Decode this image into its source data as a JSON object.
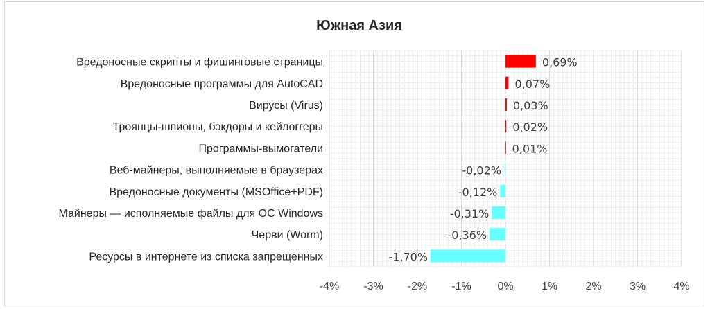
{
  "chart_data": {
    "type": "bar",
    "orientation": "horizontal",
    "title": "Южная Азия",
    "categories": [
      "Вредоносные скрипты и фишинговые страницы",
      "Вредоносные программы для AutoCAD",
      "Вирусы (Virus)",
      "Троянцы-шпионы, бэкдоры и кейлоггеры",
      "Программы-вымогатели",
      "Веб-майнеры, выполняемые в браузерах",
      "Вредоносные документы (MSOffice+PDF)",
      "Майнеры — исполняемые файлы для ОС Windows",
      "Черви (Worm)",
      "Ресурсы в интернете из списка запрещенных"
    ],
    "values": [
      0.69,
      0.07,
      0.03,
      0.02,
      0.01,
      -0.02,
      -0.12,
      -0.31,
      -0.36,
      -1.7
    ],
    "value_labels": [
      "0,69%",
      "0,07%",
      "0,03%",
      "0,02%",
      "0,01%",
      "-0,02%",
      "-0,12%",
      "-0,31%",
      "-0,36%",
      "-1,70%"
    ],
    "xlim": [
      -4,
      4
    ],
    "xticks": [
      -4,
      -3,
      -2,
      -1,
      0,
      1,
      2,
      3,
      4
    ],
    "xtick_labels": [
      "-4%",
      "-3%",
      "-2%",
      "-1%",
      "0%",
      "1%",
      "2%",
      "3%",
      "4%"
    ],
    "colors": {
      "positive": "#ff0000",
      "negative": "#66ffff"
    },
    "grid": true,
    "legend": "none"
  }
}
